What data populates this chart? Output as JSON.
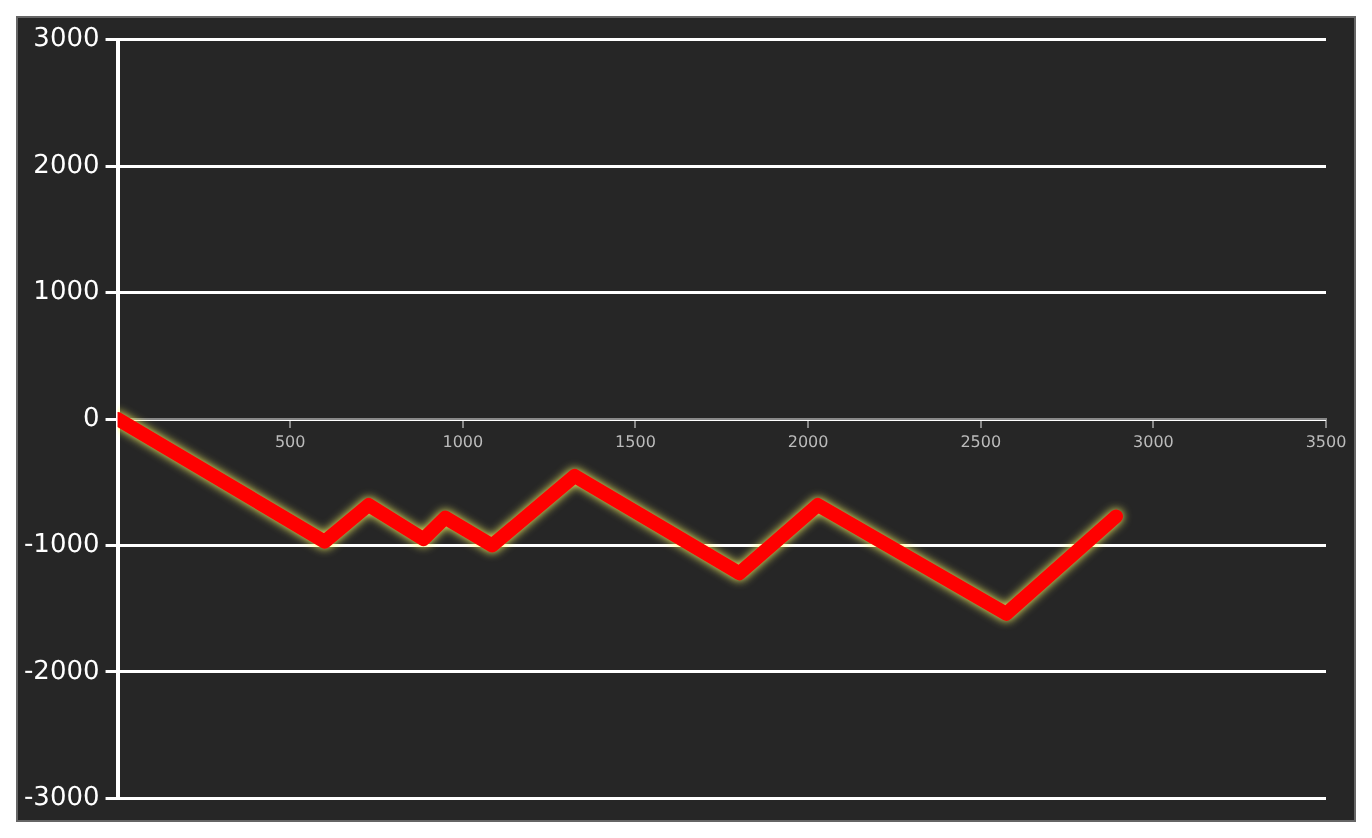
{
  "chart_data": {
    "type": "line",
    "series": [
      {
        "color": "#ff0000",
        "x": [
          0,
          600,
          727,
          886,
          949,
          1085,
          1324,
          1801,
          2028,
          2574,
          2892
        ],
        "values": [
          0,
          -970,
          -680,
          -950,
          -780,
          -1000,
          -450,
          -1220,
          -680,
          -1540,
          -770
        ]
      }
    ],
    "xlim": [
      0,
      3500
    ],
    "xticks": [
      500,
      1000,
      1500,
      2000,
      2500,
      3000,
      3500
    ],
    "ylim": [
      -3000,
      3000
    ],
    "yticks": [
      -3000,
      -2000,
      -1000,
      0,
      1000,
      2000,
      3000
    ],
    "grid": "y",
    "legend": false,
    "marker": "none",
    "line_style": "solid"
  }
}
